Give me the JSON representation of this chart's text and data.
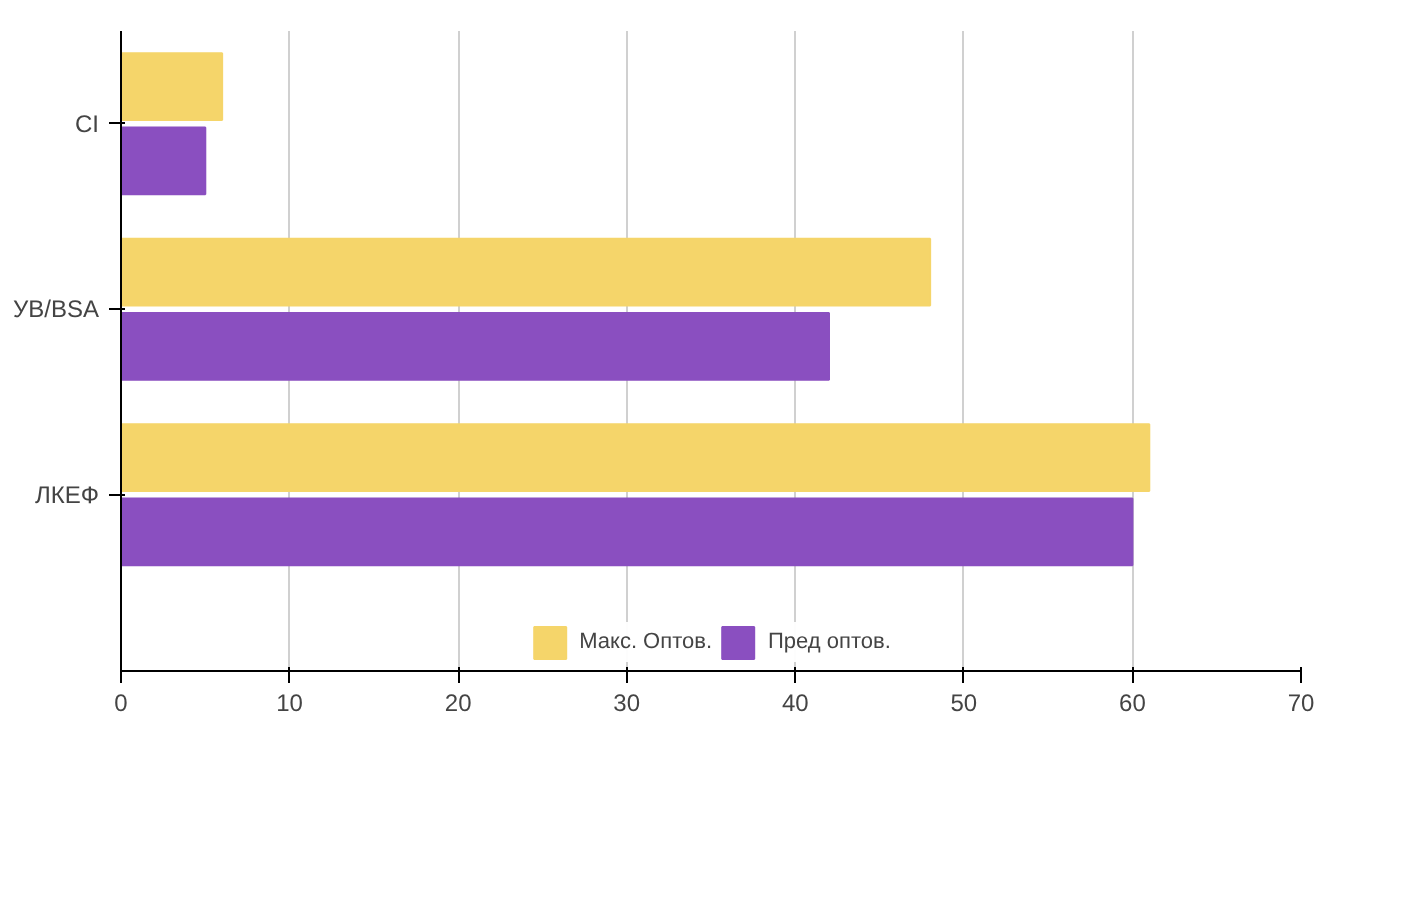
{
  "chart_data": {
    "type": "bar",
    "orientation": "horizontal",
    "categories": [
      "CI",
      "УВ/BSA",
      "ЛКЕФ"
    ],
    "series": [
      {
        "name": "Макс. Оптов.",
        "color": "#f5d56a",
        "values": [
          6,
          48,
          61
        ]
      },
      {
        "name": "Пред оптов.",
        "color": "#8a4fc0",
        "values": [
          5,
          42,
          60
        ]
      }
    ],
    "xlim": [
      0,
      70
    ],
    "xticks": [
      0,
      10,
      20,
      30,
      40,
      50,
      60,
      70
    ],
    "grid": "x",
    "legend": "bottom"
  }
}
